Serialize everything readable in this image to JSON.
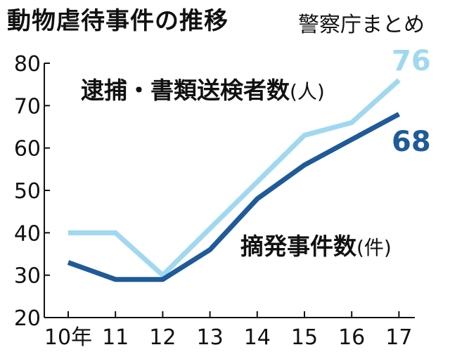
{
  "header": {
    "title": "動物虐待事件の推移",
    "source": "警察庁まとめ"
  },
  "chart_data": {
    "type": "line",
    "x": [
      "10年",
      "11",
      "12",
      "13",
      "14",
      "15",
      "16",
      "17"
    ],
    "ylim": [
      20,
      80
    ],
    "yticks": [
      "20",
      "30",
      "40",
      "50",
      "60",
      "70",
      "80"
    ],
    "grid": false,
    "series": [
      {
        "name": "逮捕・書類送検者数",
        "unit": "(人)",
        "color": "#9fd8f0",
        "values": [
          40,
          40,
          30,
          41,
          52,
          63,
          66,
          76
        ],
        "end_label": "76"
      },
      {
        "name": "摘発事件数",
        "unit": "(件)",
        "color": "#1f5a99",
        "values": [
          33,
          29,
          29,
          36,
          48,
          56,
          62,
          68
        ],
        "end_label": "68"
      }
    ]
  }
}
